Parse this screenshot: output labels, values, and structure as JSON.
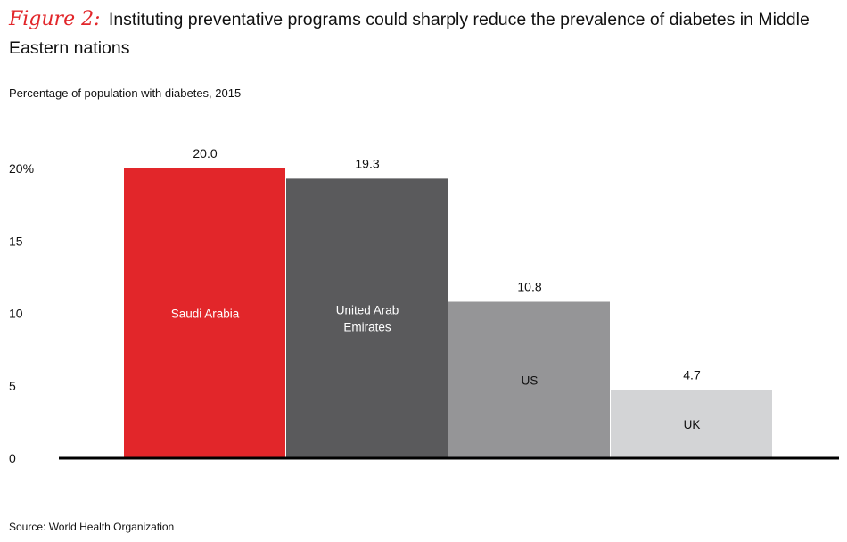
{
  "title": {
    "figure_label": "Figure 2:",
    "text": "Instituting preventative programs could sharply reduce the prevalence of diabetes in Middle Eastern nations"
  },
  "subtitle": "Percentage of population with diabetes, 2015",
  "source": "Source: World Health Organization",
  "chart_data": {
    "type": "bar",
    "title": "Percentage of population with diabetes, 2015",
    "categories": [
      "Saudi Arabia",
      "United Arab Emirates",
      "US",
      "UK"
    ],
    "category_label_lines": [
      [
        "Saudi Arabia"
      ],
      [
        "United Arab",
        "Emirates"
      ],
      [
        "US"
      ],
      [
        "UK"
      ]
    ],
    "values": [
      20.0,
      19.3,
      10.8,
      4.7
    ],
    "value_labels": [
      "20.0",
      "19.3",
      "10.8",
      "4.7"
    ],
    "bar_colors": [
      "#e2262a",
      "#5a5a5c",
      "#959597",
      "#d3d4d6"
    ],
    "label_colors": [
      "#ffffff",
      "#ffffff",
      "#111111",
      "#111111"
    ],
    "yticks": [
      0,
      5,
      10,
      15,
      20
    ],
    "ytick_labels": [
      "0",
      "5",
      "10",
      "15",
      "20%"
    ],
    "ylim": [
      0,
      20
    ],
    "xlabel": "",
    "ylabel": "",
    "grid": false,
    "legend": "none"
  }
}
